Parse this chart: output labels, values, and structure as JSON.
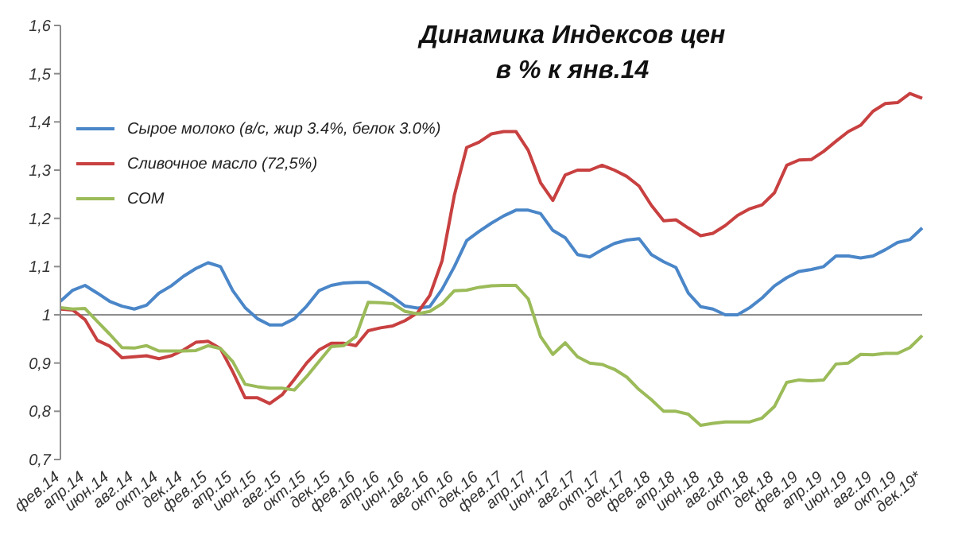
{
  "chart_data": {
    "type": "line",
    "title": "Динамика Индексов цен",
    "subtitle": "в % к янв.14",
    "categories": [
      "фев.14",
      null,
      "апр.14",
      null,
      "июн.14",
      null,
      "авг.14",
      null,
      "окт.14",
      null,
      "дек.14",
      null,
      "фев.15",
      null,
      "апр.15",
      null,
      "июн.15",
      null,
      "авг.15",
      null,
      "окт.15",
      null,
      "дек.15",
      null,
      "фев.16",
      null,
      "апр.16",
      null,
      "июн.16",
      null,
      "авг.16",
      null,
      "окт.16",
      null,
      "дек.16",
      null,
      "фев.17",
      null,
      "апр.17",
      null,
      "июн.17",
      null,
      "авг.17",
      null,
      "окт.17",
      null,
      "дек.17",
      null,
      "фев.18",
      null,
      "апр.18",
      null,
      "июн.18",
      null,
      "авг.18",
      null,
      "окт.18",
      null,
      "дек.18",
      null,
      "фев.19",
      null,
      "апр.19",
      null,
      "июн.19",
      null,
      "авг.19",
      null,
      "окт.19",
      null,
      "дек.19*"
    ],
    "series": [
      {
        "name": "Сырое молоко (в/с, жир 3.4%, белок 3.0%)",
        "color": "#4a86c8",
        "values": [
          1.028,
          1.051,
          1.061,
          1.045,
          1.028,
          1.018,
          1.012,
          1.02,
          1.045,
          1.06,
          1.08,
          1.096,
          1.108,
          1.1,
          1.05,
          1.015,
          0.992,
          0.979,
          0.979,
          0.992,
          1.018,
          1.05,
          1.061,
          1.066,
          1.067,
          1.067,
          1.053,
          1.037,
          1.018,
          1.014,
          1.017,
          1.053,
          1.1,
          1.154,
          1.173,
          1.19,
          1.205,
          1.217,
          1.217,
          1.21,
          1.175,
          1.16,
          1.125,
          1.12,
          1.135,
          1.148,
          1.155,
          1.158,
          1.125,
          1.11,
          1.098,
          1.045,
          1.017,
          1.012,
          1.0,
          1.0,
          1.015,
          1.035,
          1.06,
          1.077,
          1.09,
          1.094,
          1.1,
          1.122,
          1.122,
          1.118,
          1.122,
          1.135,
          1.15,
          1.156,
          1.18
        ]
      },
      {
        "name": "Сливочное масло  (72,5%)",
        "color": "#c84040",
        "values": [
          1.012,
          1.01,
          0.99,
          0.947,
          0.935,
          0.911,
          0.913,
          0.915,
          0.909,
          0.915,
          0.927,
          0.943,
          0.945,
          0.93,
          0.882,
          0.828,
          0.828,
          0.816,
          0.834,
          0.866,
          0.9,
          0.927,
          0.941,
          0.941,
          0.936,
          0.967,
          0.973,
          0.977,
          0.988,
          1.004,
          1.04,
          1.112,
          1.248,
          1.347,
          1.358,
          1.375,
          1.38,
          1.38,
          1.341,
          1.274,
          1.237,
          1.29,
          1.3,
          1.3,
          1.31,
          1.3,
          1.287,
          1.267,
          1.227,
          1.195,
          1.197,
          1.18,
          1.164,
          1.169,
          1.185,
          1.206,
          1.22,
          1.228,
          1.253,
          1.31,
          1.321,
          1.322,
          1.339,
          1.36,
          1.38,
          1.393,
          1.422,
          1.438,
          1.44,
          1.459,
          1.449
        ]
      },
      {
        "name": "СОМ",
        "color": "#9bbb59",
        "values": [
          1.015,
          1.012,
          1.013,
          0.986,
          0.96,
          0.932,
          0.931,
          0.936,
          0.925,
          0.925,
          0.925,
          0.926,
          0.936,
          0.93,
          0.903,
          0.856,
          0.851,
          0.848,
          0.848,
          0.844,
          0.872,
          0.903,
          0.934,
          0.936,
          0.955,
          1.026,
          1.025,
          1.023,
          1.007,
          1.002,
          1.007,
          1.023,
          1.05,
          1.051,
          1.057,
          1.06,
          1.061,
          1.061,
          1.033,
          0.955,
          0.918,
          0.942,
          0.913,
          0.9,
          0.897,
          0.887,
          0.871,
          0.845,
          0.824,
          0.8,
          0.8,
          0.794,
          0.771,
          0.775,
          0.778,
          0.778,
          0.778,
          0.786,
          0.81,
          0.86,
          0.865,
          0.863,
          0.865,
          0.898,
          0.9,
          0.918,
          0.917,
          0.92,
          0.92,
          0.932,
          0.957
        ]
      }
    ],
    "ylim": [
      0.7,
      1.6
    ],
    "yticks": [
      {
        "value": 0.7,
        "label": "0,7"
      },
      {
        "value": 0.8,
        "label": "0,8"
      },
      {
        "value": 0.9,
        "label": "0,9"
      },
      1,
      {
        "value": 1.1,
        "label": "1,1"
      },
      {
        "value": 1.2,
        "label": "1,2"
      },
      {
        "value": 1.3,
        "label": "1,3"
      },
      {
        "value": 1.4,
        "label": "1,4"
      },
      {
        "value": 1.5,
        "label": "1,5"
      },
      {
        "value": 1.6,
        "label": "1,6"
      }
    ],
    "ref_lines": [
      {
        "axis": "y",
        "value": 1,
        "color": "#8c8c8c"
      }
    ],
    "legend": "top left",
    "grid": false,
    "marker": "none",
    "line_style": "solid"
  }
}
